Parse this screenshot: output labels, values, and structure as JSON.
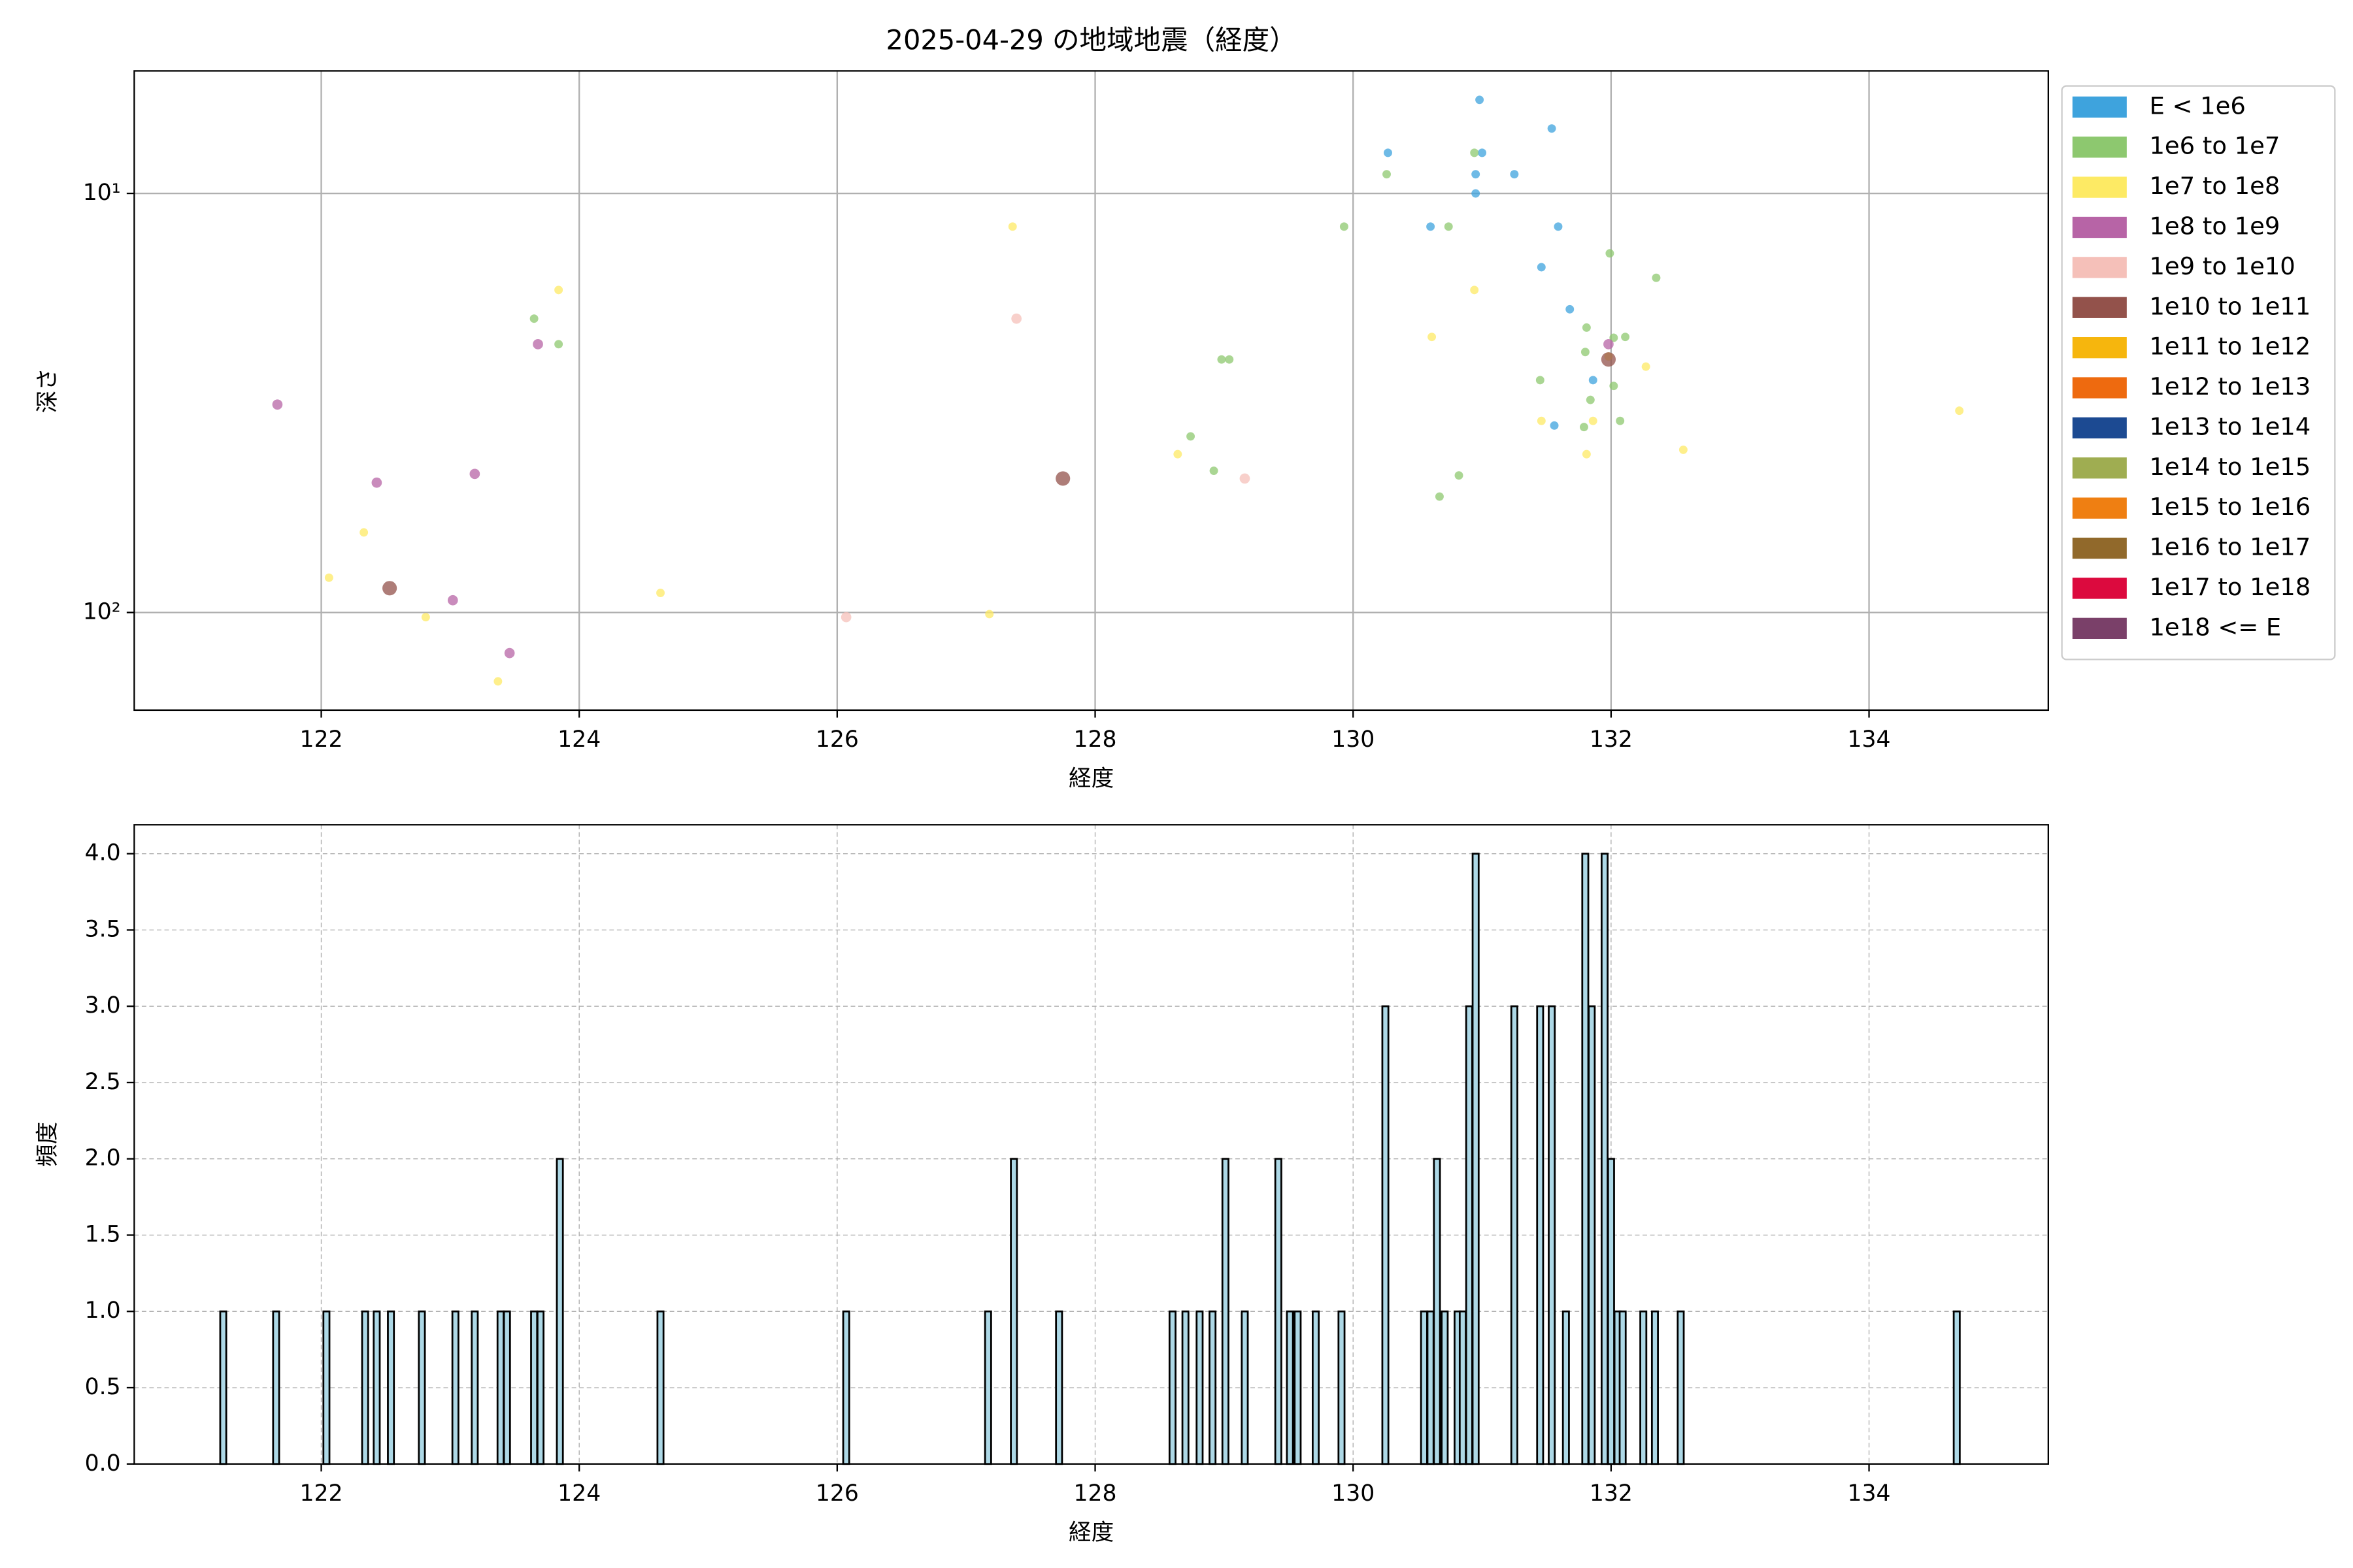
{
  "chart_data": [
    {
      "type": "scatter",
      "title": "2025-04-29 の地域地震（経度）",
      "xlabel": "経度",
      "ylabel": "深さ",
      "xlim": [
        120.55,
        135.39
      ],
      "xticks": [
        122,
        124,
        126,
        128,
        130,
        132,
        134
      ],
      "ylim": [
        171,
        5.1
      ],
      "log_scale": true,
      "yticks": [
        {
          "value": 10,
          "label": "10¹"
        },
        {
          "value": 100,
          "label": "10²"
        }
      ],
      "grid": true,
      "legend": "outside-right",
      "series": [
        {
          "name": "E < 1e6",
          "color": "#3ea3dd",
          "x": [
            130.98,
            131.54,
            130.27,
            131.0,
            130.95,
            130.95,
            131.25,
            130.6,
            131.59,
            131.46,
            131.68,
            131.86,
            131.56
          ],
          "values": [
            5.98,
            7.0,
            8.0,
            8.0,
            10,
            9.0,
            9.0,
            12.0,
            12.0,
            15.0,
            18.9,
            27.9,
            35.8
          ]
        },
        {
          "name": "1e6 to 1e7",
          "color": "#8dc86f",
          "x": [
            130.26,
            130.94,
            129.93,
            130.74,
            131.99,
            132.35,
            123.65,
            131.81,
            123.84,
            132.11,
            132.02,
            131.8,
            128.98,
            129.04,
            131.45,
            132.02,
            131.84,
            132.07,
            131.79,
            128.74,
            128.92,
            130.82,
            130.67
          ],
          "values": [
            9.0,
            8.0,
            12,
            12,
            13.9,
            15.9,
            19.9,
            20.9,
            22.9,
            22.0,
            22.1,
            23.9,
            24.9,
            24.9,
            27.9,
            28.8,
            31.1,
            34.9,
            36.1,
            38,
            45.9,
            47.1,
            52.9
          ]
        },
        {
          "name": "1e7 to 1e8",
          "color": "#fdea64",
          "x": [
            127.36,
            123.84,
            130.94,
            130.61,
            131.98,
            132.27,
            131.46,
            131.86,
            134.7,
            128.64,
            131.81,
            132.56,
            122.33,
            122.06,
            124.63,
            122.81,
            127.18,
            123.37
          ],
          "values": [
            12,
            17,
            17,
            22,
            24.5,
            25.9,
            34.9,
            34.9,
            33,
            41.9,
            41.9,
            40.9,
            64.4,
            82.6,
            89.8,
            102.6,
            100.9,
            146
          ]
        },
        {
          "name": "1e8 to 1e9",
          "color": "#b764a6",
          "x": [
            121.66,
            123.68,
            131.98,
            122.43,
            123.19,
            123.02,
            123.46
          ],
          "values": [
            31.9,
            22.9,
            22.9,
            49,
            46.7,
            93.5,
            125
          ]
        },
        {
          "name": "1e9 to 1e10",
          "color": "#f5c0b9",
          "x": [
            127.39,
            129.16,
            126.07
          ],
          "values": [
            19.9,
            47.9,
            102.6
          ]
        },
        {
          "name": "1e10 to 1e11",
          "color": "#93524b",
          "x": [
            131.98,
            127.75,
            122.53
          ],
          "values": [
            24.9,
            47.9,
            87.5
          ]
        },
        {
          "name": "1e11 to 1e12",
          "color": "#f6b60d",
          "x": [],
          "values": []
        },
        {
          "name": "1e12 to 1e13",
          "color": "#ee6a0f",
          "x": [],
          "values": []
        },
        {
          "name": "1e13 to 1e14",
          "color": "#1c4a92",
          "x": [],
          "values": []
        },
        {
          "name": "1e14 to 1e15",
          "color": "#9fad51",
          "x": [],
          "values": []
        },
        {
          "name": "1e15 to 1e16",
          "color": "#ef7f12",
          "x": [],
          "values": []
        },
        {
          "name": "1e16 to 1e17",
          "color": "#91692b",
          "x": [],
          "values": []
        },
        {
          "name": "1e17 to 1e18",
          "color": "#dc0a3e",
          "x": [],
          "values": []
        },
        {
          "name": "1e18 <= E",
          "color": "#7a4069",
          "x": [],
          "values": []
        }
      ]
    },
    {
      "type": "bar",
      "xlabel": "経度",
      "ylabel": "頻度",
      "xlim": [
        120.55,
        135.39
      ],
      "xticks": [
        122,
        124,
        126,
        128,
        130,
        132,
        134
      ],
      "ylim": [
        0,
        4.19
      ],
      "yticks": [
        {
          "value": 0,
          "label": "0.0"
        },
        0.5,
        {
          "value": 1,
          "label": "1.0"
        },
        1.5,
        {
          "value": 2,
          "label": "2.0"
        },
        2.5,
        {
          "value": 3,
          "label": "3.0"
        },
        3.5,
        {
          "value": 4,
          "label": "4.0"
        }
      ],
      "grid": true,
      "grid_linestyle": "dashed",
      "color": "#add8e6",
      "edgecolor": "#000000",
      "x": [
        121.24,
        121.65,
        122.04,
        122.34,
        122.43,
        122.54,
        122.78,
        123.04,
        123.19,
        123.39,
        123.44,
        123.65,
        123.7,
        123.85,
        124.63,
        126.07,
        127.17,
        127.37,
        127.72,
        128.6,
        128.7,
        128.81,
        128.91,
        129.01,
        129.16,
        129.42,
        129.51,
        129.57,
        129.71,
        129.91,
        130.25,
        130.55,
        130.6,
        130.65,
        130.71,
        130.81,
        130.85,
        130.9,
        130.95,
        131.25,
        131.45,
        131.54,
        131.65,
        131.8,
        131.85,
        131.95,
        132.0,
        132.05,
        132.09,
        132.25,
        132.34,
        132.54,
        134.68
      ],
      "values": [
        1,
        1,
        1,
        1,
        1,
        1,
        1,
        1,
        1,
        1,
        1,
        1,
        1,
        2,
        1,
        1,
        1,
        2,
        1,
        1,
        1,
        1,
        1,
        2,
        1,
        2,
        1,
        1,
        1,
        1,
        3,
        1,
        1,
        2,
        1,
        1,
        1,
        3,
        4,
        3,
        3,
        3,
        1,
        4,
        3,
        4,
        2,
        1,
        1,
        1,
        1,
        1,
        1
      ]
    }
  ]
}
